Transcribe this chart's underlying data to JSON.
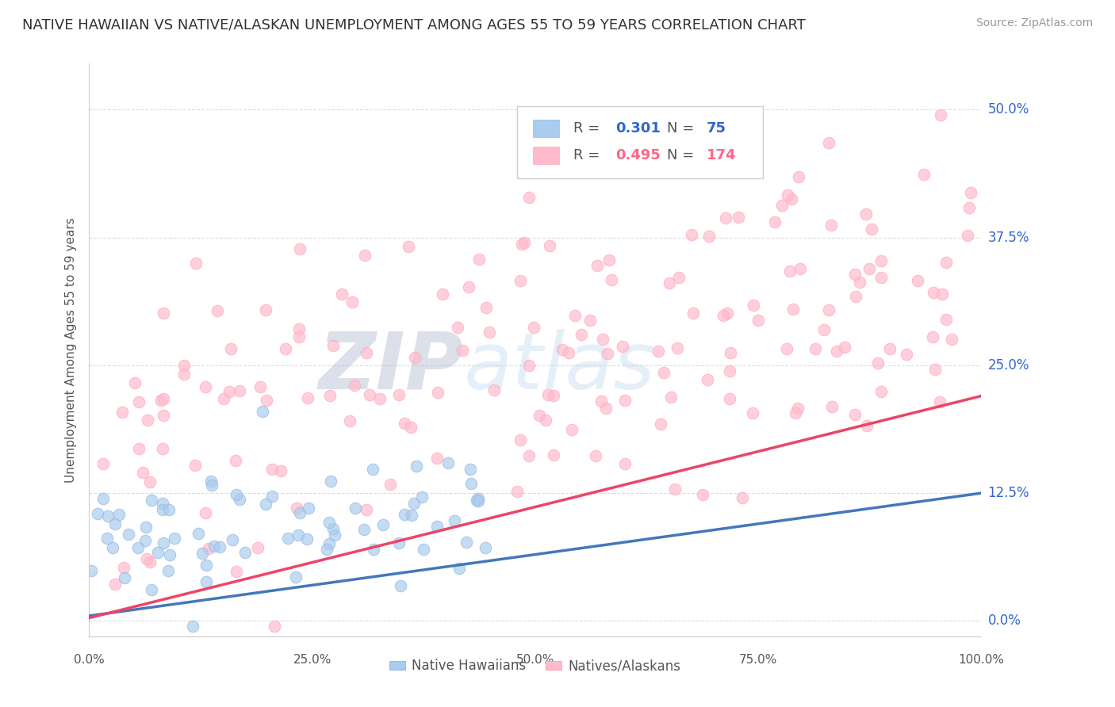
{
  "title": "NATIVE HAWAIIAN VS NATIVE/ALASKAN UNEMPLOYMENT AMONG AGES 55 TO 59 YEARS CORRELATION CHART",
  "source": "Source: ZipAtlas.com",
  "ylabel": "Unemployment Among Ages 55 to 59 years",
  "xlim": [
    0.0,
    1.0
  ],
  "ylim": [
    -0.015,
    0.545
  ],
  "xticks": [
    0.0,
    0.25,
    0.5,
    0.75,
    1.0
  ],
  "xticklabels": [
    "0.0%",
    "25.0%",
    "50.0%",
    "75.0%",
    "100.0%"
  ],
  "yticks": [
    0.0,
    0.125,
    0.25,
    0.375,
    0.5
  ],
  "yticklabels": [
    "0.0%",
    "12.5%",
    "25.0%",
    "37.5%",
    "50.0%"
  ],
  "blue_R": 0.301,
  "blue_N": 75,
  "pink_R": 0.495,
  "pink_N": 174,
  "blue_color": "#99BBDD",
  "pink_color": "#FFAABB",
  "blue_fill": "#AACCEE",
  "pink_fill": "#FFBBCC",
  "blue_line_color": "#4477BB",
  "pink_line_color": "#EE4466",
  "blue_label": "Native Hawaiians",
  "pink_label": "Natives/Alaskans",
  "background_color": "#FFFFFF",
  "title_fontsize": 13,
  "source_fontsize": 10,
  "legend_color": "#3366CC",
  "legend_pink_color": "#FF6688",
  "grid_color": "#DDDDDD",
  "axis_color": "#CCCCCC"
}
